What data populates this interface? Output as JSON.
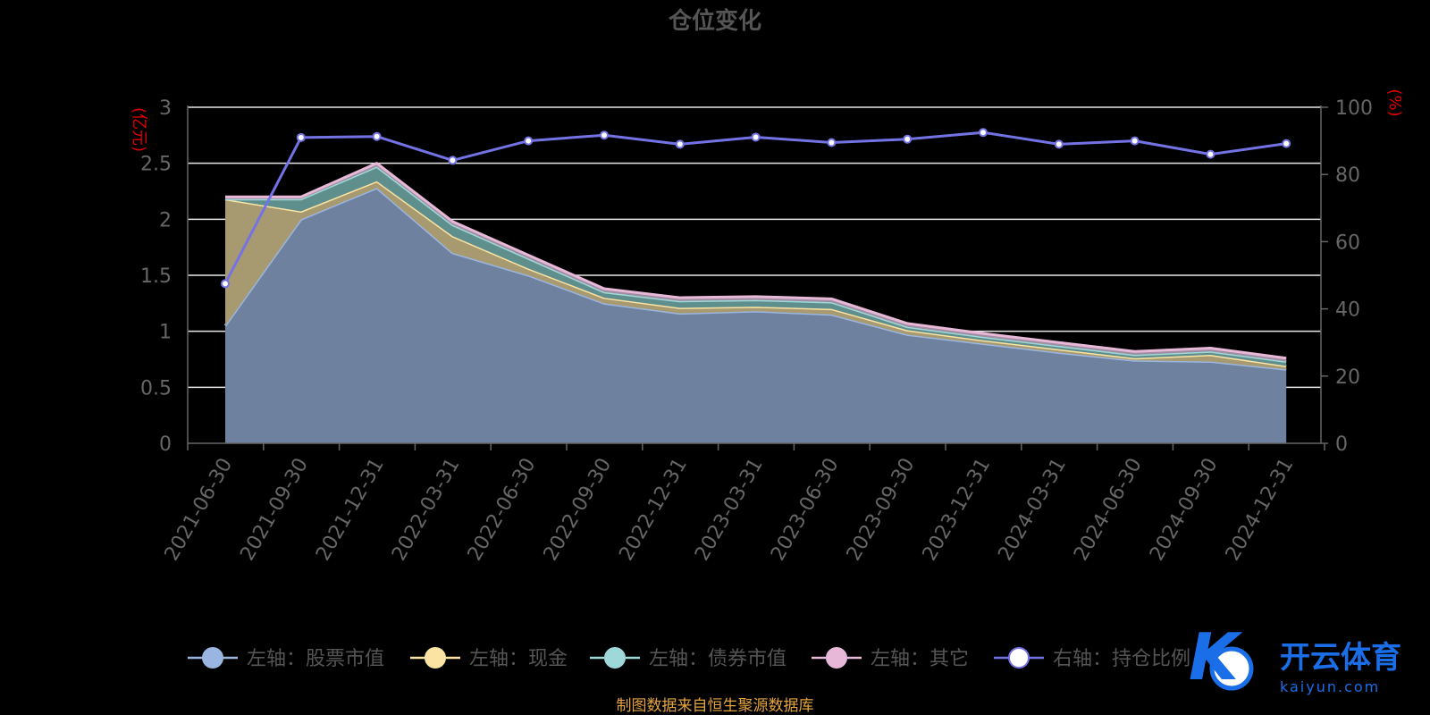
{
  "chart_data": {
    "type": "area",
    "title": "仓位变化",
    "left_axis_unit": "(亿元)",
    "right_axis_unit": "(%)",
    "categories": [
      "2021-06-30",
      "2021-09-30",
      "2021-12-31",
      "2022-03-31",
      "2022-06-30",
      "2022-09-30",
      "2022-12-31",
      "2023-03-31",
      "2023-06-30",
      "2023-09-30",
      "2023-12-31",
      "2024-03-31",
      "2024-06-30",
      "2024-09-30",
      "2024-12-31"
    ],
    "left_ylim": [
      0,
      3
    ],
    "left_yticks": [
      0,
      0.5,
      1,
      1.5,
      2,
      2.5,
      3
    ],
    "left_ytick_labels": [
      "0",
      "0.5",
      "1",
      "1.5",
      "2",
      "2.5",
      "3"
    ],
    "right_ylim": [
      0,
      100
    ],
    "right_yticks": [
      0,
      20,
      40,
      60,
      80,
      100
    ],
    "right_ytick_labels": [
      "0",
      "20",
      "40",
      "60",
      "80",
      "100"
    ],
    "stacked_series": [
      {
        "name": "左轴：股票市值",
        "color": "#9ab5e0",
        "fill": "#6e819e",
        "values": [
          1.05,
          2.0,
          2.28,
          1.7,
          1.5,
          1.25,
          1.16,
          1.18,
          1.15,
          0.97,
          0.89,
          0.81,
          0.74,
          0.73,
          0.66
        ]
      },
      {
        "name": "左轴：现金",
        "color": "#fbe3a4",
        "fill": "#a79a70",
        "values": [
          1.13,
          0.07,
          0.06,
          0.15,
          0.06,
          0.05,
          0.05,
          0.04,
          0.05,
          0.04,
          0.03,
          0.03,
          0.02,
          0.06,
          0.03
        ]
      },
      {
        "name": "左轴：债券市值",
        "color": "#9ed8d8",
        "fill": "#5f8f8c",
        "values": [
          0.0,
          0.11,
          0.13,
          0.1,
          0.09,
          0.05,
          0.06,
          0.06,
          0.06,
          0.03,
          0.03,
          0.03,
          0.03,
          0.03,
          0.04
        ]
      },
      {
        "name": "左轴：其它",
        "color": "#e8b8d8",
        "fill": "#9f8da3",
        "values": [
          0.02,
          0.02,
          0.03,
          0.03,
          0.03,
          0.03,
          0.03,
          0.03,
          0.03,
          0.03,
          0.03,
          0.03,
          0.03,
          0.03,
          0.03
        ]
      }
    ],
    "line_series": {
      "name": "右轴：持仓比例",
      "color": "#7373e6",
      "values": [
        47.5,
        91.0,
        91.3,
        84.2,
        90.0,
        91.7,
        89.0,
        91.1,
        89.5,
        90.5,
        92.5,
        89.0,
        90.0,
        86.0,
        89.2
      ]
    },
    "legend_position": "bottom"
  },
  "source_note": "制图数据来自恒生聚源数据库",
  "watermark": {
    "text": "开云体育",
    "sub": "kaiyun.com"
  }
}
